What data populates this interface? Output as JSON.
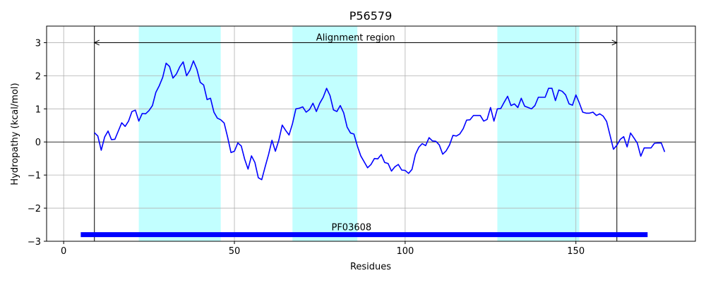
{
  "chart_data": {
    "type": "line",
    "title": "P56579",
    "xlabel": "Residues",
    "ylabel": "Hydropathy (kcal/mol)",
    "xlim": [
      -5,
      185
    ],
    "ylim": [
      -3,
      3.5
    ],
    "xticks": [
      0,
      50,
      100,
      150
    ],
    "yticks": [
      -3,
      -2,
      -1,
      0,
      1,
      2,
      3
    ],
    "grid": true,
    "colors": {
      "line": "#0000ff",
      "band": "#c2ffff",
      "domain_bar": "#0000ff",
      "grid": "#b0b0b0"
    },
    "series": [
      {
        "x": [
          9,
          10,
          11,
          12,
          13,
          14,
          15,
          16,
          17,
          18,
          19,
          20,
          21,
          22,
          23,
          24,
          25,
          26,
          27,
          28,
          29,
          30,
          31,
          32,
          33,
          34,
          35,
          36,
          37,
          38,
          39,
          40,
          41,
          42,
          43,
          44,
          45,
          46,
          47,
          48,
          49,
          50,
          51,
          52,
          53,
          54,
          55,
          56,
          57,
          58,
          59,
          60,
          61,
          62,
          63,
          64,
          65,
          66,
          67,
          68,
          69,
          70,
          71,
          72,
          73,
          74,
          75,
          76,
          77,
          78,
          79,
          80,
          81,
          82,
          83,
          84,
          85,
          86,
          87,
          88,
          89,
          90,
          91,
          92,
          93,
          94,
          95,
          96,
          97,
          98,
          99,
          100,
          101,
          102,
          103,
          104,
          105,
          106,
          107,
          108,
          109,
          110,
          111,
          112,
          113,
          114,
          115,
          116,
          117,
          118,
          119,
          120,
          121,
          122,
          123,
          124,
          125,
          126,
          127,
          128,
          129,
          130,
          131,
          132,
          133,
          134,
          135,
          136,
          137,
          138,
          139,
          140,
          141,
          142,
          143,
          144,
          145,
          146,
          147,
          148,
          149,
          150,
          151,
          152,
          153,
          154,
          155,
          156,
          157,
          158,
          159,
          160,
          161,
          162,
          163,
          164,
          165,
          166,
          167,
          168,
          169,
          170,
          171,
          172,
          173,
          174,
          175,
          176
        ],
        "y": [
          0.28,
          0.18,
          -0.25,
          0.15,
          0.33,
          0.07,
          0.08,
          0.33,
          0.58,
          0.47,
          0.63,
          0.92,
          0.96,
          0.63,
          0.86,
          0.85,
          0.95,
          1.1,
          1.5,
          1.7,
          1.95,
          2.38,
          2.28,
          1.93,
          2.05,
          2.27,
          2.42,
          2.0,
          2.17,
          2.45,
          2.2,
          1.8,
          1.72,
          1.28,
          1.32,
          0.9,
          0.72,
          0.67,
          0.57,
          0.15,
          -0.32,
          -0.28,
          -0.03,
          -0.12,
          -0.52,
          -0.82,
          -0.42,
          -0.62,
          -1.08,
          -1.14,
          -0.75,
          -0.38,
          0.05,
          -0.28,
          0.05,
          0.51,
          0.35,
          0.21,
          0.55,
          1.0,
          1.02,
          1.06,
          0.9,
          0.98,
          1.17,
          0.92,
          1.17,
          1.35,
          1.62,
          1.4,
          0.97,
          0.92,
          1.1,
          0.88,
          0.45,
          0.27,
          0.24,
          -0.12,
          -0.42,
          -0.6,
          -0.78,
          -0.68,
          -0.5,
          -0.51,
          -0.38,
          -0.62,
          -0.65,
          -0.88,
          -0.75,
          -0.68,
          -0.85,
          -0.86,
          -0.95,
          -0.83,
          -0.38,
          -0.16,
          -0.05,
          -0.11,
          0.13,
          0.03,
          0.02,
          -0.09,
          -0.37,
          -0.27,
          -0.09,
          0.2,
          0.18,
          0.24,
          0.4,
          0.66,
          0.67,
          0.8,
          0.8,
          0.8,
          0.63,
          0.68,
          1.04,
          0.63,
          1.0,
          1.01,
          1.2,
          1.38,
          1.1,
          1.15,
          1.04,
          1.32,
          1.08,
          1.04,
          1.0,
          1.1,
          1.35,
          1.35,
          1.35,
          1.62,
          1.62,
          1.25,
          1.57,
          1.53,
          1.42,
          1.15,
          1.11,
          1.42,
          1.18,
          0.9,
          0.87,
          0.87,
          0.9,
          0.8,
          0.85,
          0.78,
          0.62,
          0.2,
          -0.22,
          -0.1,
          0.08,
          0.16,
          -0.15,
          0.27,
          0.12,
          -0.04,
          -0.43,
          -0.18,
          -0.18,
          -0.18,
          -0.04,
          -0.03,
          -0.03,
          -0.3
        ]
      }
    ],
    "shaded_regions": [
      [
        22,
        46
      ],
      [
        67,
        86
      ],
      [
        127,
        151
      ]
    ],
    "alignment": {
      "label": "Alignment region",
      "start": 9,
      "end": 162,
      "y": 3.0
    },
    "domain": {
      "label": "PF03608",
      "start": 5,
      "end": 171,
      "y": -2.8
    }
  }
}
